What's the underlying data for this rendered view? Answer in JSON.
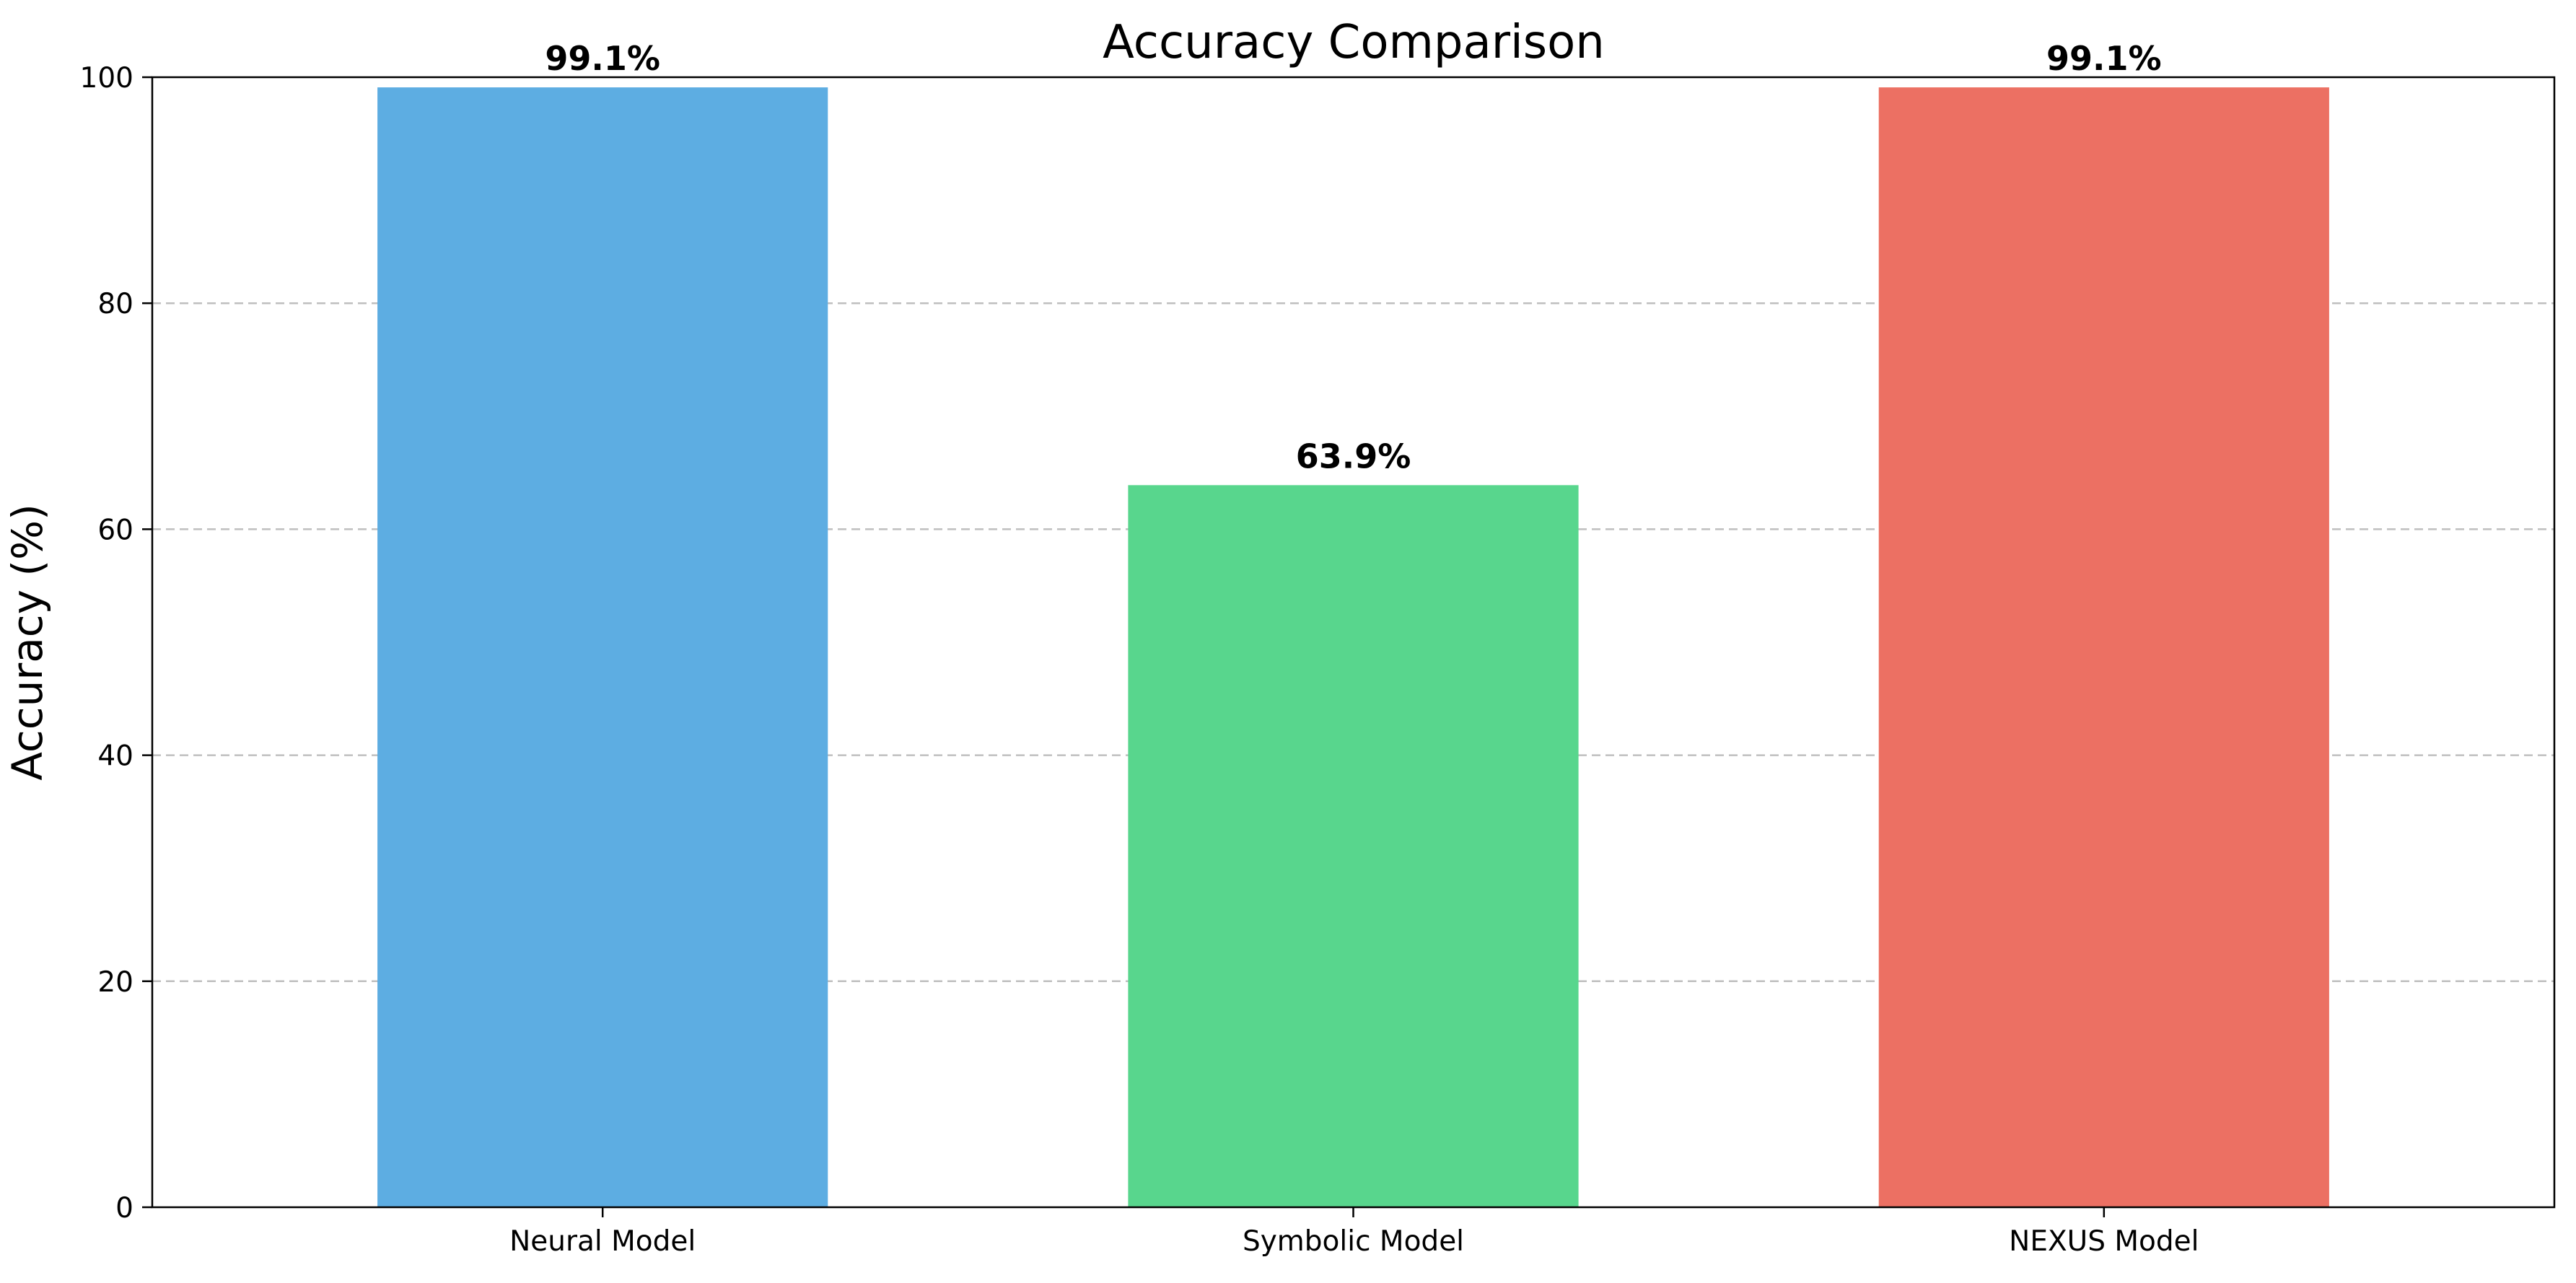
{
  "chart_data": {
    "type": "bar",
    "title": "Accuracy Comparison",
    "xlabel": "",
    "ylabel": "Accuracy (%)",
    "categories": [
      "Neural Model",
      "Symbolic Model",
      "NEXUS Model"
    ],
    "values": [
      99.1,
      63.9,
      99.1
    ],
    "value_labels": [
      "99.1%",
      "63.9%",
      "99.1%"
    ],
    "colors": [
      "#5dade2",
      "#58d68d",
      "#ec7063"
    ],
    "ylim": [
      0,
      100
    ],
    "yticks": [
      0,
      20,
      40,
      60,
      80,
      100
    ],
    "ytick_labels": [
      "0",
      "20",
      "40",
      "60",
      "80",
      "100"
    ],
    "grid": "y-dashed",
    "legend": "none"
  }
}
